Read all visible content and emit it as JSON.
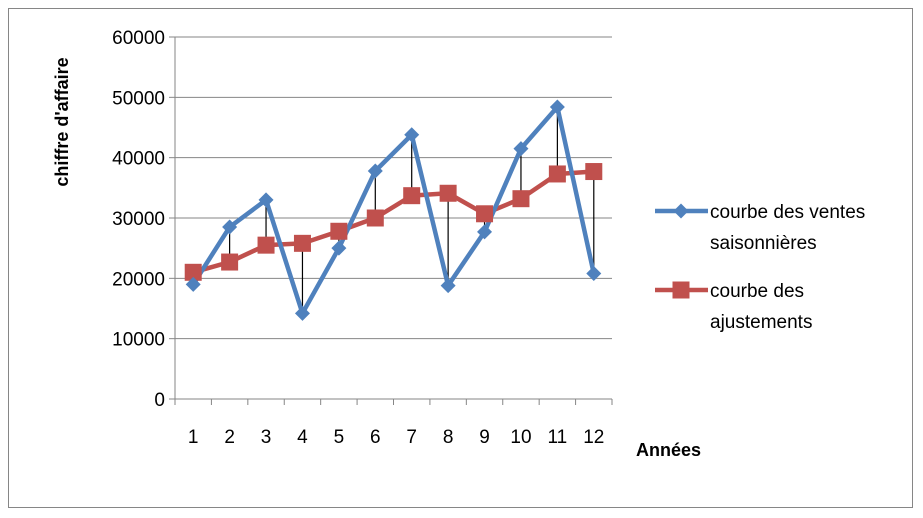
{
  "chart_data": {
    "type": "line",
    "title": "",
    "xlabel": "Années",
    "ylabel": "chiffre d'affaire",
    "categories": [
      "1",
      "2",
      "3",
      "4",
      "5",
      "6",
      "7",
      "8",
      "9",
      "10",
      "11",
      "12"
    ],
    "ylim": [
      0,
      60000
    ],
    "yticks": [
      "0",
      "10000",
      "20000",
      "30000",
      "40000",
      "50000",
      "60000"
    ],
    "grid": true,
    "legend_position": "right",
    "series": [
      {
        "name_lines": [
          "courbe des ventes",
          "saisonnières"
        ],
        "color": "#4F81BD",
        "marker": "diamond",
        "values": [
          19000,
          28500,
          33000,
          14200,
          25000,
          37800,
          43800,
          18800,
          27700,
          41500,
          48400,
          20800
        ]
      },
      {
        "name_lines": [
          "courbe des",
          "ajustements"
        ],
        "color": "#C0504D",
        "marker": "square",
        "values": [
          21000,
          22700,
          25500,
          25800,
          27800,
          30000,
          33700,
          34100,
          30700,
          33200,
          37300,
          37700
        ]
      }
    ],
    "drop_lines": true
  }
}
